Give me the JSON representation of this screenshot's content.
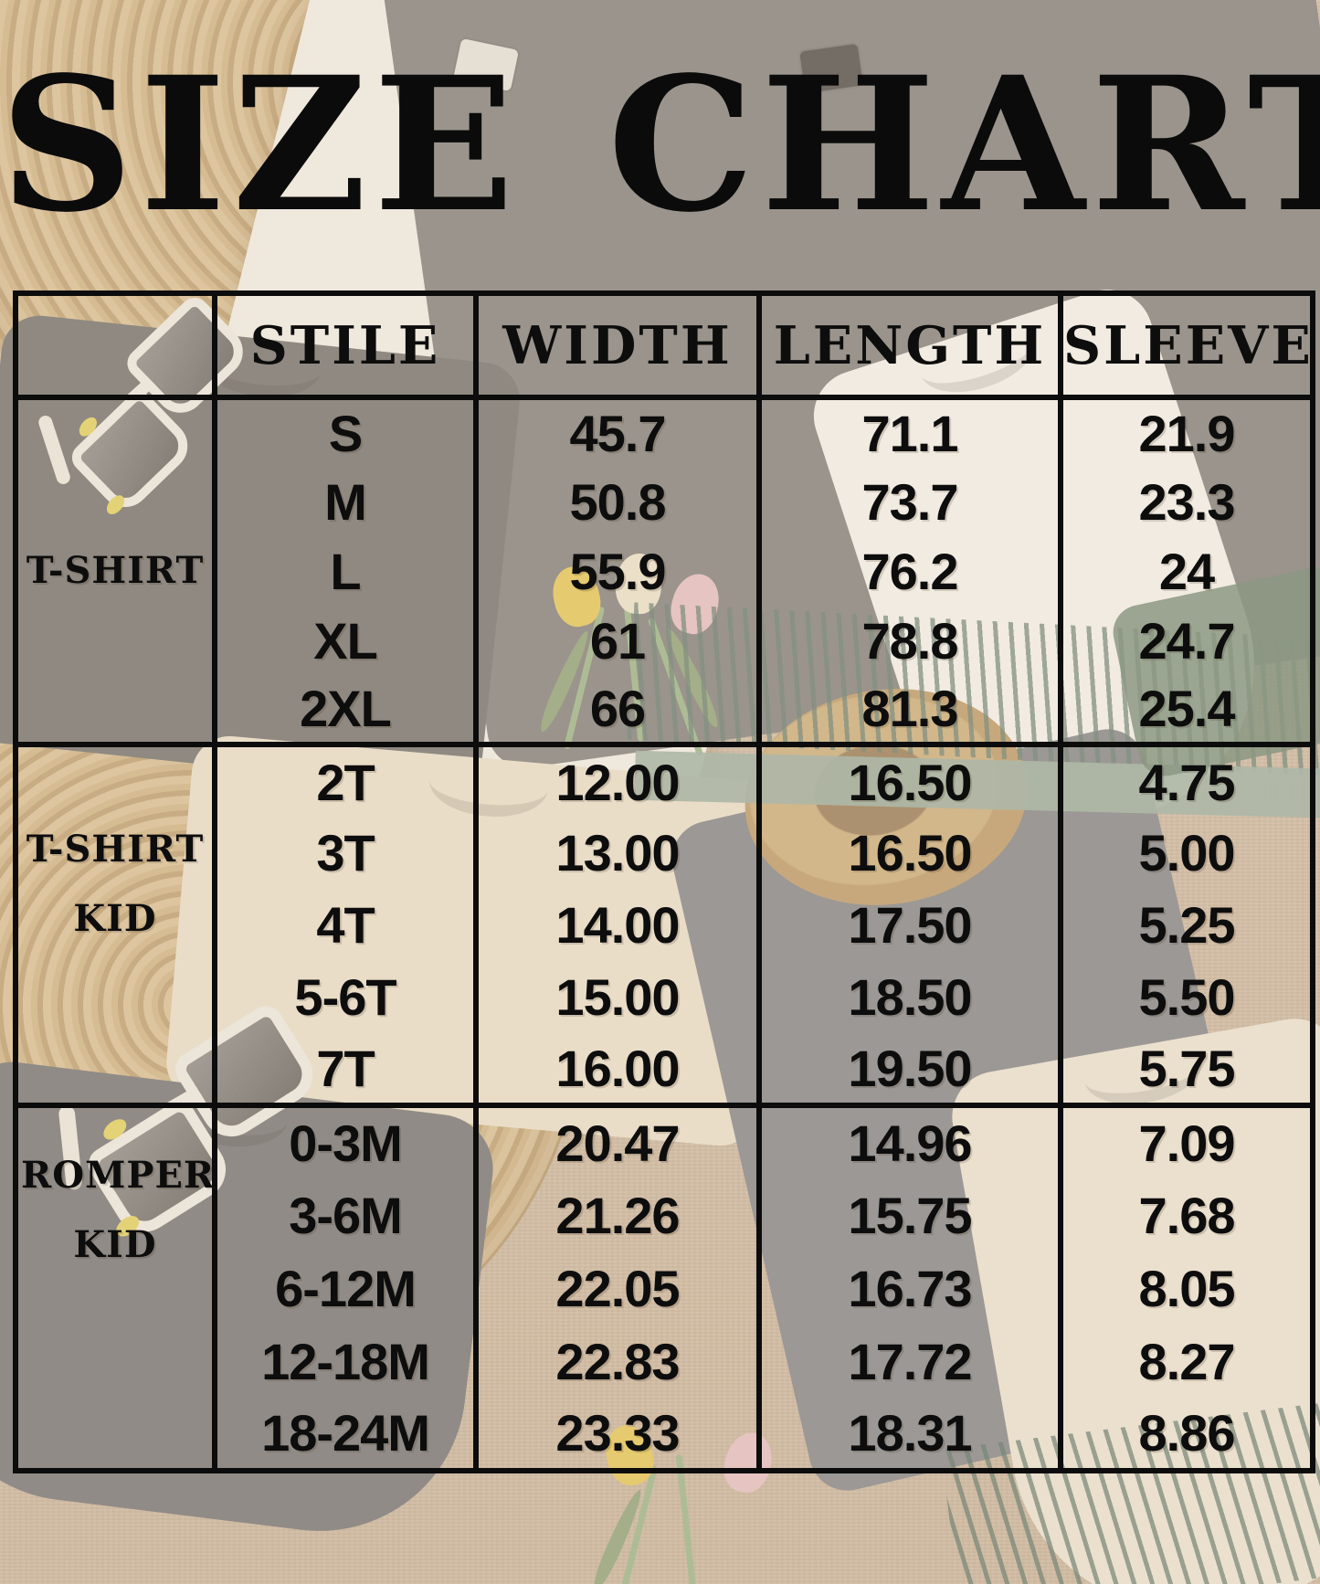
{
  "title": "SIZE CHART",
  "chart_data": {
    "type": "table",
    "title": "SIZE CHART",
    "columns": [
      "",
      "STILE",
      "WIDTH",
      "LENGTH",
      "SLEEVE"
    ],
    "sections": [
      {
        "group": "T-SHIRT",
        "rows": [
          [
            "S",
            "45.7",
            "71.1",
            "21.9"
          ],
          [
            "M",
            "50.8",
            "73.7",
            "23.3"
          ],
          [
            "L",
            "55.9",
            "76.2",
            "24"
          ],
          [
            "XL",
            "61",
            "78.8",
            "24.7"
          ],
          [
            "2XL",
            "66",
            "81.3",
            "25.4"
          ]
        ]
      },
      {
        "group": "T-SHIRT KID",
        "rows": [
          [
            "2T",
            "12.00",
            "16.50",
            "4.75"
          ],
          [
            "3T",
            "13.00",
            "16.50",
            "5.00"
          ],
          [
            "4T",
            "14.00",
            "17.50",
            "5.25"
          ],
          [
            "5-6T",
            "15.00",
            "18.50",
            "5.50"
          ],
          [
            "7T",
            "16.00",
            "19.50",
            "5.75"
          ]
        ]
      },
      {
        "group": "ROMPER KID",
        "rows": [
          [
            "0-3M",
            "20.47",
            "14.96",
            "7.09"
          ],
          [
            "3-6M",
            "21.26",
            "15.75",
            "7.68"
          ],
          [
            "6-12M",
            "22.05",
            "16.73",
            "8.05"
          ],
          [
            "12-18M",
            "22.83",
            "17.72",
            "8.27"
          ],
          [
            "18-24M",
            "23.33",
            "18.31",
            "8.86"
          ]
        ]
      }
    ]
  },
  "background": {
    "items": [
      "woven-placemat",
      "white-tshirt",
      "dark-gray-tshirt",
      "gray-tshirt",
      "white-baby-romper",
      "sunglasses",
      "straw-hat",
      "green-fringed-scarf",
      "cream-kid-tshirt",
      "gray-kid-tshirt",
      "gray-kid-romper",
      "cream-kid-romper",
      "tulip-flowers",
      "burlap-fabric"
    ],
    "colors": {
      "ink": "#0c0c0c",
      "burlap": "#cbb39a",
      "placemat": "#c2a06c",
      "white_shirt": "#f7f5f1",
      "gray_shirt": "#6e6e6e",
      "dark_shirt": "#5c5c5c",
      "cream_shirt": "#efe4cf",
      "scarf_green": "#8fa799",
      "straw_hat": "#c9a76d",
      "tulip_yellow": "#e9c63f"
    }
  }
}
